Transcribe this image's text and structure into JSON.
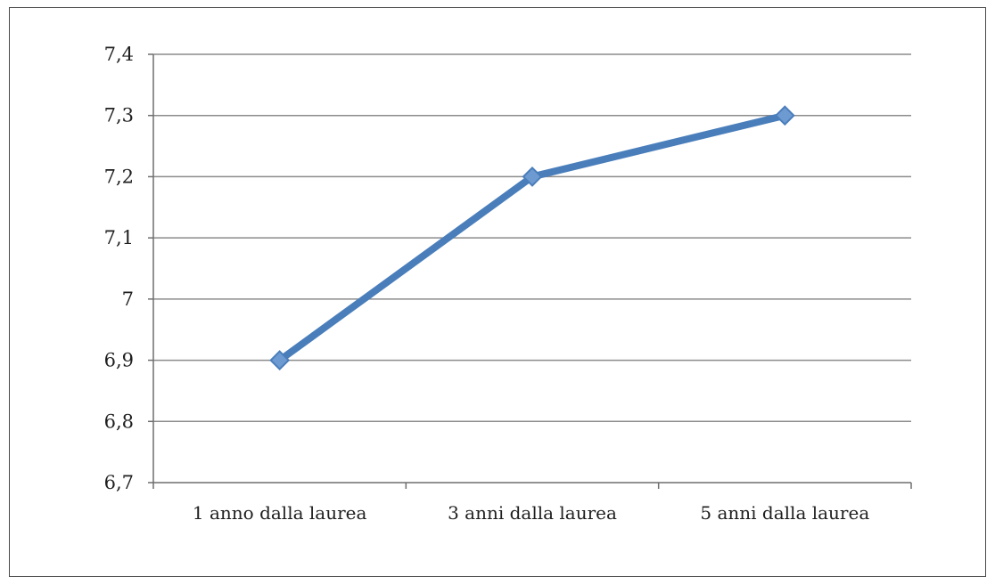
{
  "chart_data": {
    "type": "line",
    "title": "",
    "xlabel": "",
    "ylabel": "",
    "categories": [
      "1 anno dalla laurea",
      "3 anni dalla laurea",
      "5 anni dalla laurea"
    ],
    "series": [
      {
        "values": [
          6.9,
          7.2,
          7.3
        ],
        "color": "#4a7ebb",
        "marker": "diamond"
      }
    ],
    "ylim": [
      6.7,
      7.4
    ],
    "yticks": [
      6.7,
      6.8,
      6.9,
      7,
      7.1,
      7.2,
      7.3,
      7.4
    ],
    "ytick_labels": [
      "6,7",
      "6,8",
      "6,9",
      "7",
      "7,1",
      "7,2",
      "7,3",
      "7,4"
    ],
    "grid": true,
    "legend": "none",
    "colors": {
      "gridline": "#8c8c8c",
      "axis": "#6e6e6e",
      "line": "#4a7ebb",
      "marker_fill": "#6d9ad1"
    }
  }
}
